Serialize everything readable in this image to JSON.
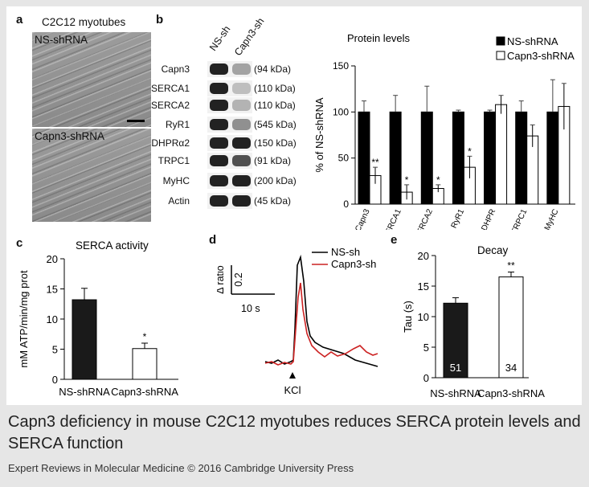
{
  "panel_a": {
    "letter": "a",
    "title": "C2C12 myotubes",
    "image_top_label": "NS-shRNA",
    "image_bottom_label": "Capn3-shRNA"
  },
  "panel_b": {
    "letter": "b",
    "lane_labels": [
      "NS-sh",
      "Capn3-sh"
    ],
    "bands": [
      {
        "name": "Capn3",
        "kda": "(94 kDa)",
        "ns": 1.0,
        "capn3": 0.3
      },
      {
        "name": "SERCA1",
        "kda": "(110 kDa)",
        "ns": 1.0,
        "capn3": 0.15
      },
      {
        "name": "SERCA2",
        "kda": "(110 kDa)",
        "ns": 1.0,
        "capn3": 0.2
      },
      {
        "name": "RyR1",
        "kda": "(545 kDa)",
        "ns": 1.0,
        "capn3": 0.4
      },
      {
        "name": "DHPRα2",
        "kda": "(150 kDa)",
        "ns": 1.0,
        "capn3": 1.0
      },
      {
        "name": "TRPC1",
        "kda": "(91 kDa)",
        "ns": 1.0,
        "capn3": 0.75
      },
      {
        "name": "MyHC",
        "kda": "(200 kDa)",
        "ns": 1.0,
        "capn3": 1.0
      },
      {
        "name": "Actin",
        "kda": "(45 kDa)",
        "ns": 1.0,
        "capn3": 1.0
      }
    ]
  },
  "chart_data": [
    {
      "id": "protein_levels",
      "type": "bar",
      "title": "Protein levels",
      "ylabel": "% of NS-shRNA",
      "ylim": [
        0,
        150
      ],
      "yticks": [
        0,
        50,
        100,
        150
      ],
      "categories": [
        "Capn3",
        "SERCA1",
        "SERCA2",
        "RyR1",
        "DHPR",
        "TRPC1",
        "MyHC"
      ],
      "series": [
        {
          "name": "NS-shRNA",
          "color": "#000000",
          "values": [
            100,
            100,
            100,
            100,
            100,
            100,
            100
          ],
          "errors": [
            12,
            18,
            28,
            2,
            2,
            12,
            35
          ]
        },
        {
          "name": "Capn3-shRNA",
          "color": "#ffffff",
          "values": [
            31,
            13,
            17,
            40,
            108,
            74,
            106
          ],
          "errors": [
            9,
            8,
            4,
            12,
            10,
            12,
            25
          ]
        }
      ],
      "significance": [
        "**",
        "*",
        "*",
        "*",
        "",
        "",
        ""
      ],
      "legend": "top-right"
    },
    {
      "id": "serca_activity",
      "type": "bar",
      "title": "SERCA activity",
      "ylabel": "mM ATP/min/mg prot",
      "ylim": [
        0,
        20
      ],
      "yticks": [
        0,
        5,
        10,
        15,
        20
      ],
      "categories": [
        "NS-shRNA",
        "Capn3-shRNA"
      ],
      "values": [
        13.2,
        5.1
      ],
      "errors": [
        1.9,
        0.9
      ],
      "colors": [
        "#1a1a1a",
        "#ffffff"
      ],
      "significance": [
        "",
        "*"
      ]
    },
    {
      "id": "calcium_traces",
      "type": "line",
      "letter": "d",
      "ylabel": "Δ ratio",
      "scale_y": "0.2",
      "scale_x": "10 s",
      "stimulus": "KCl",
      "series": [
        {
          "name": "NS-sh",
          "color": "#000000"
        },
        {
          "name": "Capn3-sh",
          "color": "#cc2222"
        }
      ]
    },
    {
      "id": "decay",
      "type": "bar",
      "title": "Decay",
      "ylabel": "Tau (s)",
      "ylim": [
        0,
        20
      ],
      "yticks": [
        0,
        5,
        10,
        15,
        20
      ],
      "categories": [
        "NS-shRNA",
        "Capn3-shRNA"
      ],
      "values": [
        12.2,
        16.5
      ],
      "errors": [
        0.9,
        0.8
      ],
      "n_labels": [
        "51",
        "34"
      ],
      "colors": [
        "#1a1a1a",
        "#ffffff"
      ],
      "significance": [
        "",
        "**"
      ]
    }
  ],
  "labels": {
    "c": "c",
    "d": "d",
    "e": "e"
  },
  "caption": "Capn3 deficiency in mouse C2C12 myotubes reduces SERCA protein levels and SERCA function",
  "footer": "Expert Reviews in Molecular Medicine © 2016 Cambridge University Press"
}
